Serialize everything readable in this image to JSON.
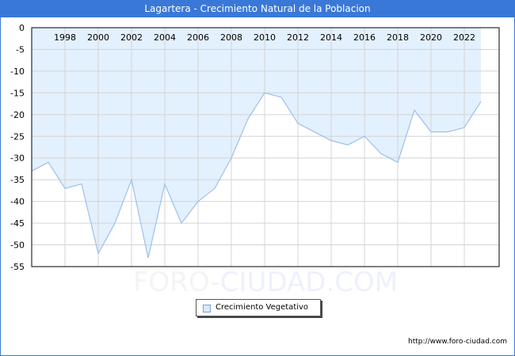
{
  "title": "Lagartera - Crecimiento Natural de la Poblacion",
  "colors": {
    "title_bg": "#3a78d8",
    "fill": "#e3f0fd",
    "line": "#9ebfec",
    "grid": "#d4d4d4"
  },
  "watermark": {
    "part1": "FORO-",
    "part2": "CIUDAD.COM"
  },
  "legend": {
    "label": "Crecimiento Vegetativo"
  },
  "source": "http://www.foro-ciudad.com",
  "chart_data": {
    "type": "area",
    "title": "Lagartera - Crecimiento Natural de la Poblacion",
    "xlabel": "",
    "ylabel": "",
    "ylim": [
      -55,
      0
    ],
    "yticks": [
      0,
      -5,
      -10,
      -15,
      -20,
      -25,
      -30,
      -35,
      -40,
      -45,
      -50,
      -55
    ],
    "xticks": [
      "1998",
      "2000",
      "2002",
      "2004",
      "2006",
      "2008",
      "2010",
      "2012",
      "2014",
      "2016",
      "2018",
      "2020",
      "2022"
    ],
    "xtick_position": "top (inside plot)",
    "grid": true,
    "legend_position": "bottom-center",
    "series": [
      {
        "name": "Crecimiento Vegetativo",
        "x": [
          1996,
          1997,
          1998,
          1999,
          2000,
          2001,
          2002,
          2003,
          2004,
          2005,
          2006,
          2007,
          2008,
          2009,
          2010,
          2011,
          2012,
          2013,
          2014,
          2015,
          2016,
          2017,
          2018,
          2019,
          2020,
          2021,
          2022,
          2023
        ],
        "values": [
          -33,
          -31,
          -37,
          -36,
          -52,
          -45,
          -35,
          -53,
          -36,
          -45,
          -40,
          -37,
          -30,
          -21,
          -15,
          -16,
          -22,
          -24,
          -26,
          -27,
          -25,
          -29,
          -31,
          -19,
          -24,
          -24,
          -23,
          -17
        ]
      }
    ]
  }
}
